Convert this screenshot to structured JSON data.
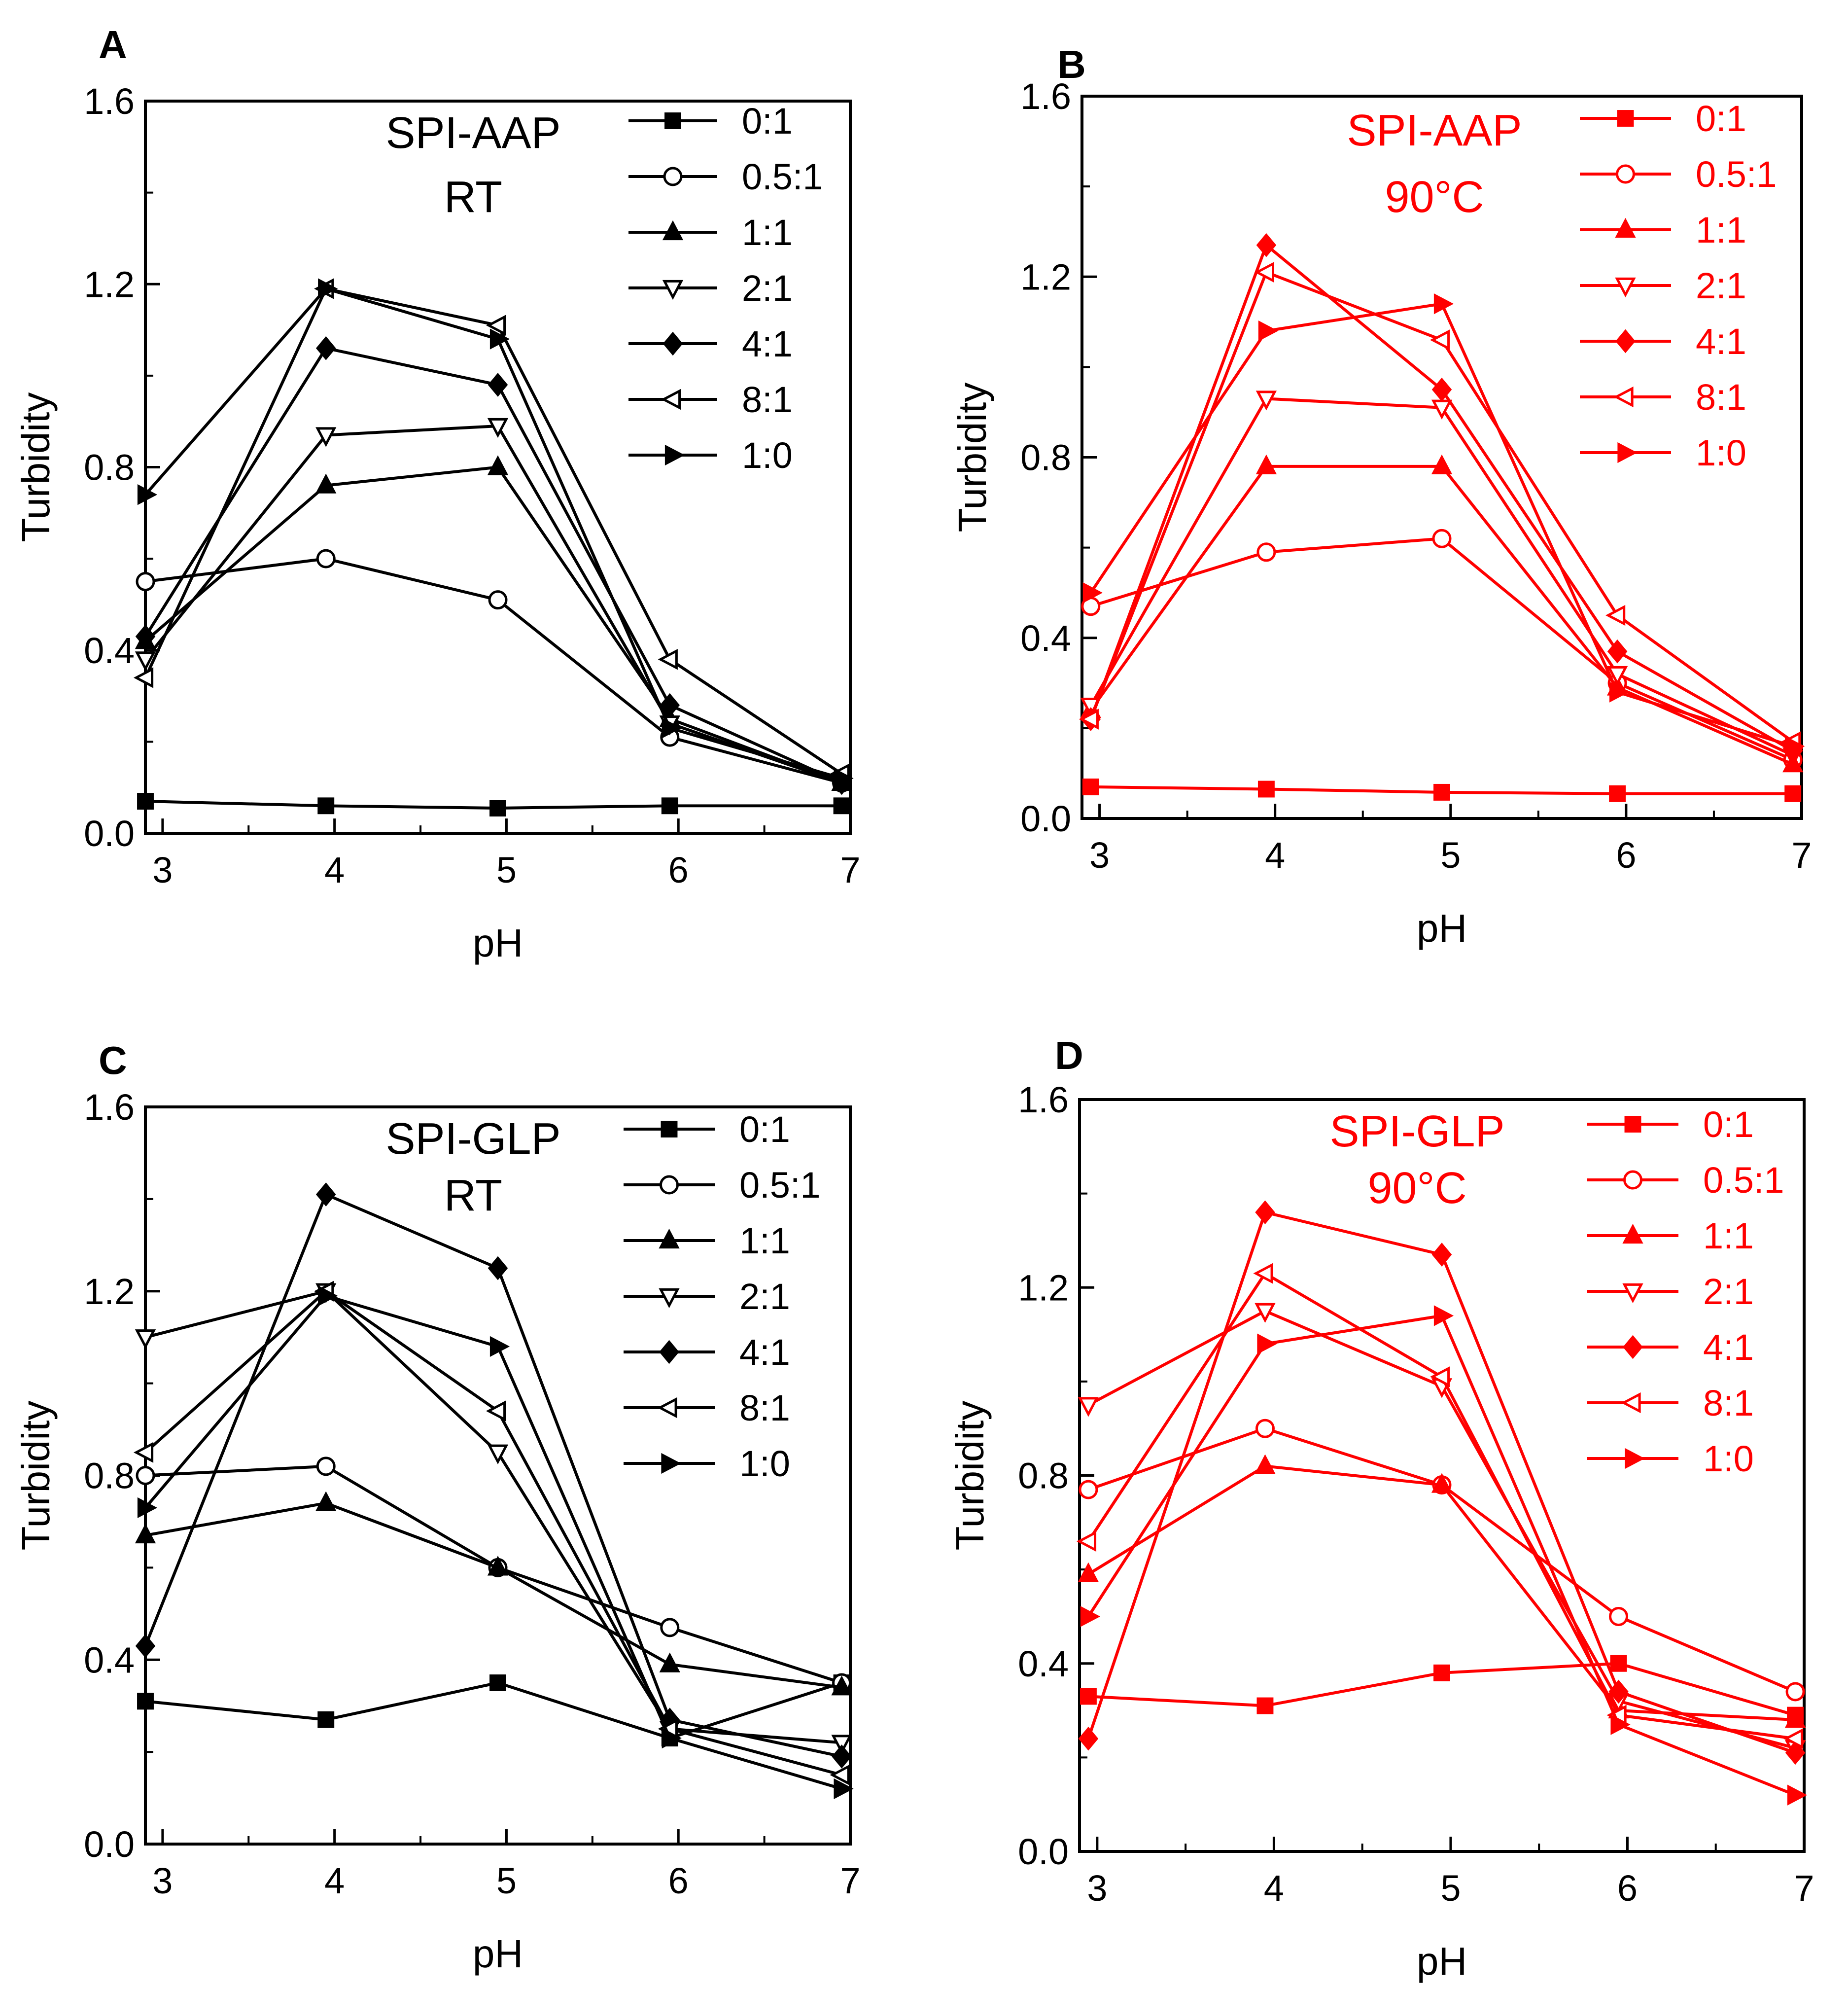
{
  "colors": {
    "black": "#000000",
    "red": "#ff0000",
    "errorbar": "#808080"
  },
  "chart_data": [
    {
      "panel": "A",
      "type": "line",
      "color": "black",
      "annotation": [
        "SPI-AAP",
        "RT"
      ],
      "xlabel": "pH",
      "ylabel": "Turbidity",
      "xlim": [
        2.9,
        7.0
      ],
      "ylim": [
        0.0,
        1.6
      ],
      "xticks": [
        "3",
        "4",
        "5",
        "6",
        "7"
      ],
      "yticks": [
        "0.0",
        "0.4",
        "0.8",
        "1.2",
        "1.6"
      ],
      "x": [
        2.9,
        3.95,
        4.95,
        5.95,
        6.95
      ],
      "series": [
        {
          "name": "0:1",
          "marker": "square",
          "filled": true,
          "values": [
            0.07,
            0.06,
            0.055,
            0.06,
            0.06
          ]
        },
        {
          "name": "0.5:1",
          "marker": "circle",
          "filled": false,
          "values": [
            0.55,
            0.6,
            0.51,
            0.21,
            0.11
          ]
        },
        {
          "name": "1:1",
          "marker": "triangle-up",
          "filled": true,
          "values": [
            0.42,
            0.76,
            0.8,
            0.25,
            0.11
          ]
        },
        {
          "name": "2:1",
          "marker": "triangle-down",
          "filled": false,
          "values": [
            0.38,
            0.87,
            0.89,
            0.24,
            0.11
          ]
        },
        {
          "name": "4:1",
          "marker": "diamond",
          "filled": true,
          "values": [
            0.43,
            1.06,
            0.98,
            0.28,
            0.11
          ]
        },
        {
          "name": "8:1",
          "marker": "triangle-left",
          "filled": false,
          "values": [
            0.34,
            1.19,
            1.11,
            0.38,
            0.13
          ]
        },
        {
          "name": "1:0",
          "marker": "triangle-right",
          "filled": true,
          "values": [
            0.74,
            1.19,
            1.08,
            0.23,
            0.12
          ]
        }
      ]
    },
    {
      "panel": "B",
      "type": "line",
      "color": "red",
      "annotation": [
        "SPI-AAP",
        "90°C"
      ],
      "xlabel": "pH",
      "ylabel": "Turbidity",
      "xlim": [
        2.9,
        7.0
      ],
      "ylim": [
        0.0,
        1.6
      ],
      "xticks": [
        "3",
        "4",
        "5",
        "6",
        "7"
      ],
      "yticks": [
        "0.0",
        "0.4",
        "0.8",
        "1.2",
        "1.6"
      ],
      "x": [
        2.95,
        3.95,
        4.95,
        5.95,
        6.95
      ],
      "series": [
        {
          "name": "0:1",
          "marker": "square",
          "filled": true,
          "values": [
            0.07,
            0.065,
            0.058,
            0.055,
            0.055
          ]
        },
        {
          "name": "0.5:1",
          "marker": "circle",
          "filled": false,
          "values": [
            0.47,
            0.59,
            0.62,
            0.3,
            0.13
          ]
        },
        {
          "name": "1:1",
          "marker": "triangle-up",
          "filled": true,
          "values": [
            0.24,
            0.78,
            0.78,
            0.29,
            0.12
          ]
        },
        {
          "name": "2:1",
          "marker": "triangle-down",
          "filled": false,
          "values": [
            0.25,
            0.93,
            0.91,
            0.32,
            0.14
          ]
        },
        {
          "name": "4:1",
          "marker": "diamond",
          "filled": true,
          "values": [
            0.22,
            1.27,
            0.95,
            0.37,
            0.15
          ]
        },
        {
          "name": "8:1",
          "marker": "triangle-left",
          "filled": false,
          "values": [
            0.22,
            1.21,
            1.06,
            0.45,
            0.17
          ]
        },
        {
          "name": "1:0",
          "marker": "triangle-right",
          "filled": true,
          "values": [
            0.5,
            1.08,
            1.14,
            0.28,
            0.16
          ]
        }
      ]
    },
    {
      "panel": "C",
      "type": "line",
      "color": "black",
      "annotation": [
        "SPI-GLP",
        "RT"
      ],
      "xlabel": "pH",
      "ylabel": "Turbidity",
      "xlim": [
        2.9,
        7.0
      ],
      "ylim": [
        0.0,
        1.6
      ],
      "xticks": [
        "3",
        "4",
        "5",
        "6",
        "7"
      ],
      "yticks": [
        "0.0",
        "0.4",
        "0.8",
        "1.2",
        "1.6"
      ],
      "x": [
        2.9,
        3.95,
        4.95,
        5.95,
        6.95
      ],
      "series": [
        {
          "name": "0:1",
          "marker": "square",
          "filled": true,
          "values": [
            0.31,
            0.27,
            0.35,
            0.23,
            0.35
          ]
        },
        {
          "name": "0.5:1",
          "marker": "circle",
          "filled": false,
          "values": [
            0.8,
            0.82,
            0.6,
            0.47,
            0.35
          ]
        },
        {
          "name": "1:1",
          "marker": "triangle-up",
          "filled": true,
          "values": [
            0.67,
            0.74,
            0.6,
            0.39,
            0.34
          ]
        },
        {
          "name": "2:1",
          "marker": "triangle-down",
          "filled": false,
          "values": [
            1.1,
            1.2,
            0.85,
            0.25,
            0.22
          ]
        },
        {
          "name": "4:1",
          "marker": "diamond",
          "filled": true,
          "values": [
            0.43,
            1.41,
            1.25,
            0.27,
            0.19
          ]
        },
        {
          "name": "8:1",
          "marker": "triangle-left",
          "filled": false,
          "values": [
            0.85,
            1.2,
            0.94,
            0.25,
            0.15
          ]
        },
        {
          "name": "1:0",
          "marker": "triangle-right",
          "filled": true,
          "values": [
            0.73,
            1.19,
            1.08,
            0.23,
            0.12
          ]
        }
      ]
    },
    {
      "panel": "D",
      "type": "line",
      "color": "red",
      "annotation": [
        "SPI-GLP",
        "90°C"
      ],
      "xlabel": "pH",
      "ylabel": "Turbidity",
      "xlim": [
        2.9,
        7.0
      ],
      "ylim": [
        0.0,
        1.6
      ],
      "xticks": [
        "3",
        "4",
        "5",
        "6",
        "7"
      ],
      "yticks": [
        "0.0",
        "0.4",
        "0.8",
        "1.2",
        "1.6"
      ],
      "x": [
        2.95,
        3.95,
        4.95,
        5.95,
        6.95
      ],
      "series": [
        {
          "name": "0:1",
          "marker": "square",
          "filled": true,
          "values": [
            0.33,
            0.31,
            0.38,
            0.4,
            0.29
          ]
        },
        {
          "name": "0.5:1",
          "marker": "circle",
          "filled": false,
          "values": [
            0.77,
            0.9,
            0.78,
            0.5,
            0.34
          ]
        },
        {
          "name": "1:1",
          "marker": "triangle-up",
          "filled": true,
          "values": [
            0.59,
            0.82,
            0.78,
            0.3,
            0.28
          ]
        },
        {
          "name": "2:1",
          "marker": "triangle-down",
          "filled": false,
          "values": [
            0.95,
            1.15,
            0.99,
            0.32,
            0.22
          ]
        },
        {
          "name": "4:1",
          "marker": "diamond",
          "filled": true,
          "values": [
            0.24,
            1.36,
            1.27,
            0.34,
            0.21
          ]
        },
        {
          "name": "8:1",
          "marker": "triangle-left",
          "filled": false,
          "values": [
            0.66,
            1.23,
            1.01,
            0.29,
            0.24
          ]
        },
        {
          "name": "1:0",
          "marker": "triangle-right",
          "filled": true,
          "values": [
            0.5,
            1.08,
            1.14,
            0.27,
            0.12
          ]
        }
      ]
    }
  ]
}
